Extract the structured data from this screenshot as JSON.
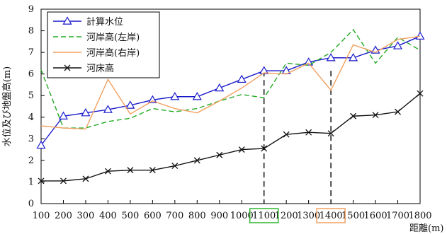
{
  "chart_data": {
    "type": "line",
    "title": "",
    "xlabel": "距離(m)",
    "ylabel": "水位及び地盤高(m)",
    "x": [
      100,
      200,
      300,
      400,
      500,
      600,
      700,
      800,
      900,
      1000,
      1100,
      1200,
      1300,
      1400,
      1500,
      1600,
      1700,
      1800
    ],
    "x_tick_labels": [
      "100",
      "200",
      "300",
      "400",
      "500",
      "600",
      "700",
      "800",
      "900",
      "1000",
      "1100",
      "1200",
      "1300",
      "1400",
      "1500",
      "1600",
      "1700",
      "1800"
    ],
    "xlim": [
      100,
      1800
    ],
    "ylim": [
      0,
      9
    ],
    "y_ticks": [
      0,
      1,
      2,
      3,
      4,
      5,
      6,
      7,
      8,
      9
    ],
    "grid": false,
    "legend_position": "top-left",
    "highlighted_x": [
      {
        "x": 1100,
        "color": "#2db82d"
      },
      {
        "x": 1400,
        "color": "#f0a060"
      }
    ],
    "series": [
      {
        "name": "計算水位",
        "color": "#1a1acc",
        "marker": "triangle",
        "dash": "solid",
        "values": [
          2.7,
          4.05,
          4.2,
          4.35,
          4.55,
          4.8,
          4.95,
          4.95,
          5.35,
          5.75,
          6.15,
          6.15,
          6.55,
          6.75,
          6.75,
          7.1,
          7.3,
          7.75
        ]
      },
      {
        "name": "河岸高(左岸)",
        "color": "#22aa22",
        "marker": "none",
        "dash": "dash",
        "values": [
          6.2,
          3.5,
          3.5,
          3.8,
          3.95,
          4.4,
          4.25,
          4.4,
          4.75,
          5.05,
          4.9,
          6.5,
          6.4,
          7.0,
          8.05,
          6.5,
          7.7,
          7.1
        ]
      },
      {
        "name": "河岸高(右岸)",
        "color": "#f0a060",
        "marker": "none",
        "dash": "solid",
        "values": [
          3.6,
          3.5,
          3.45,
          5.75,
          4.15,
          4.75,
          4.4,
          4.2,
          4.75,
          5.35,
          6.05,
          6.0,
          6.5,
          5.25,
          7.35,
          7.0,
          7.6,
          7.75
        ]
      },
      {
        "name": "河床高",
        "color": "#111111",
        "marker": "x",
        "dash": "solid",
        "values": [
          1.05,
          1.05,
          1.15,
          1.5,
          1.55,
          1.55,
          1.75,
          2.0,
          2.25,
          2.5,
          2.55,
          3.2,
          3.3,
          3.25,
          4.05,
          4.1,
          4.25,
          5.1
        ]
      }
    ]
  }
}
